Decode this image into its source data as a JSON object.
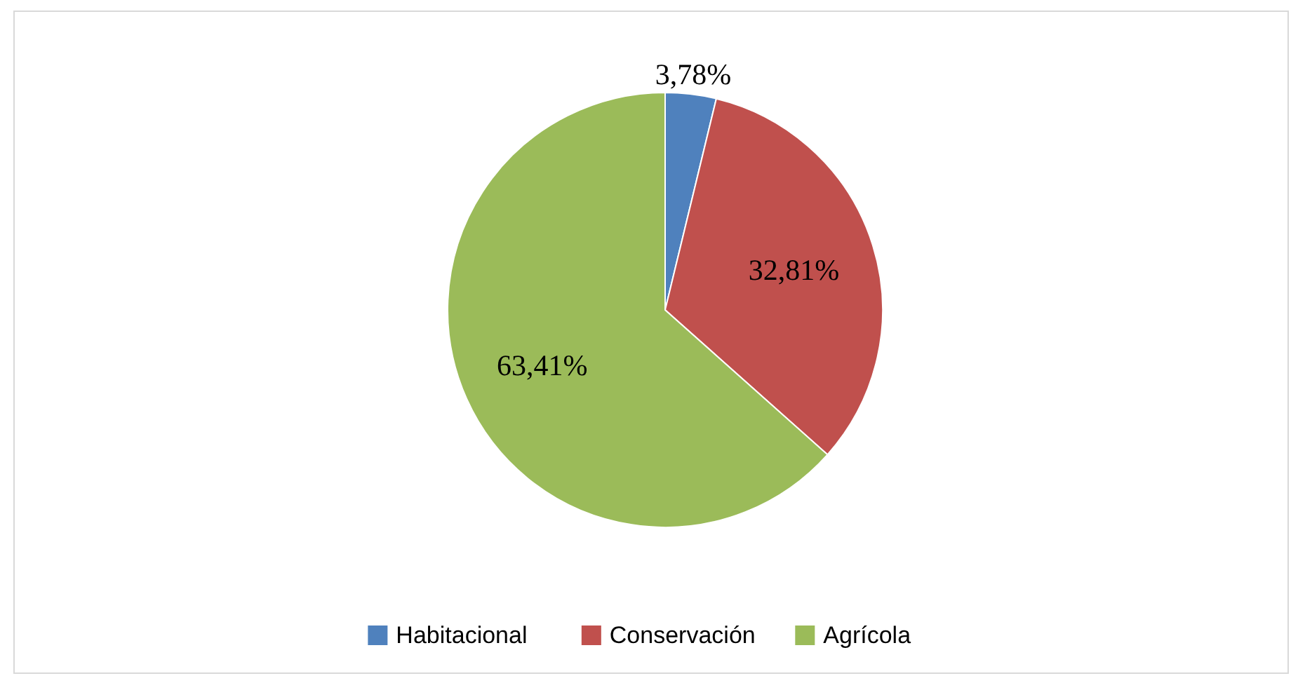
{
  "chart_data": {
    "type": "pie",
    "categories": [
      "Habitacional",
      "Conservación",
      "Agrícola"
    ],
    "values": [
      3.78,
      32.81,
      63.41
    ],
    "colors": [
      "#4f81bd",
      "#c0504d",
      "#9bbb59"
    ],
    "value_labels": [
      "3,78%",
      "32,81%",
      "63,41%"
    ],
    "legend": "bottom"
  }
}
